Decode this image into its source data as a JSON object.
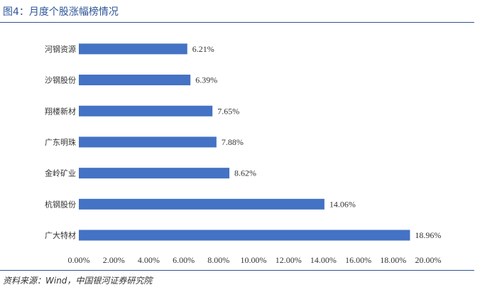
{
  "title": "图4：月度个股涨幅榜情况",
  "source": "资料来源：Wind，中国银河证券研究院",
  "colors": {
    "bar": "#4472c4",
    "accent": "#2e5597"
  },
  "chart_data": {
    "type": "bar",
    "orientation": "horizontal",
    "categories": [
      "河钢资源",
      "沙钢股份",
      "翔楼新材",
      "广东明珠",
      "金岭矿业",
      "杭钢股份",
      "广大特材"
    ],
    "values": [
      6.21,
      6.39,
      7.65,
      7.88,
      8.62,
      14.06,
      18.96
    ],
    "value_labels": [
      "6.21%",
      "6.39%",
      "7.65%",
      "7.88%",
      "8.62%",
      "14.06%",
      "18.96%"
    ],
    "x_ticks": [
      "0.00%",
      "2.00%",
      "4.00%",
      "6.00%",
      "8.00%",
      "10.00%",
      "12.00%",
      "14.00%",
      "16.00%",
      "18.00%",
      "20.00%"
    ],
    "xlim": [
      0,
      20
    ],
    "grid": false
  }
}
